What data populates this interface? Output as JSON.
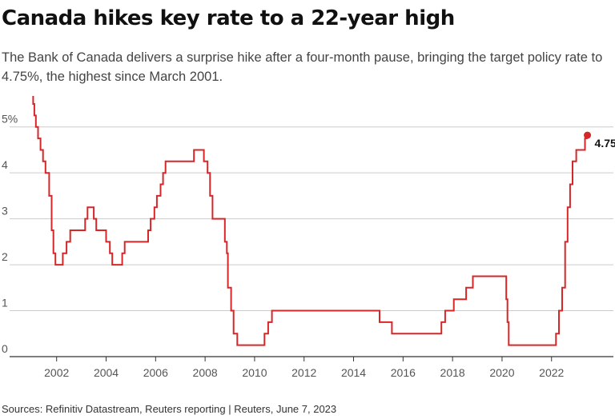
{
  "header": {
    "title": "Canada hikes key rate to a 22-year high",
    "subtitle": "The Bank of Canada delivers a surprise hike after a four-month pause, bringing the target policy rate to 4.75%, the highest since March 2001."
  },
  "footer": {
    "source": "Sources: Refinitiv Datastream, Reuters reporting | Reuters, June 7, 2023"
  },
  "colors": {
    "line": "#d62728",
    "grid": "#cccccc",
    "axis": "#333333"
  },
  "chart_data": {
    "type": "line",
    "series": [
      {
        "name": "Target policy rate",
        "step": true,
        "points": [
          [
            2001.0,
            5.75
          ],
          [
            2001.05,
            5.5
          ],
          [
            2001.1,
            5.25
          ],
          [
            2001.16,
            5.0
          ],
          [
            2001.25,
            4.75
          ],
          [
            2001.35,
            4.5
          ],
          [
            2001.45,
            4.25
          ],
          [
            2001.55,
            4.0
          ],
          [
            2001.7,
            3.5
          ],
          [
            2001.8,
            2.75
          ],
          [
            2001.87,
            2.25
          ],
          [
            2001.95,
            2.0
          ],
          [
            2002.25,
            2.25
          ],
          [
            2002.4,
            2.5
          ],
          [
            2002.55,
            2.75
          ],
          [
            2003.15,
            3.0
          ],
          [
            2003.25,
            3.25
          ],
          [
            2003.5,
            3.0
          ],
          [
            2003.6,
            2.75
          ],
          [
            2004.0,
            2.5
          ],
          [
            2004.15,
            2.25
          ],
          [
            2004.25,
            2.0
          ],
          [
            2004.65,
            2.25
          ],
          [
            2004.75,
            2.5
          ],
          [
            2005.7,
            2.75
          ],
          [
            2005.8,
            3.0
          ],
          [
            2005.95,
            3.25
          ],
          [
            2006.05,
            3.5
          ],
          [
            2006.2,
            3.75
          ],
          [
            2006.3,
            4.0
          ],
          [
            2006.4,
            4.25
          ],
          [
            2007.55,
            4.5
          ],
          [
            2007.95,
            4.25
          ],
          [
            2008.1,
            4.0
          ],
          [
            2008.2,
            3.5
          ],
          [
            2008.3,
            3.0
          ],
          [
            2008.8,
            2.5
          ],
          [
            2008.88,
            2.25
          ],
          [
            2008.92,
            1.5
          ],
          [
            2009.05,
            1.0
          ],
          [
            2009.15,
            0.5
          ],
          [
            2009.3,
            0.25
          ],
          [
            2010.4,
            0.5
          ],
          [
            2010.55,
            0.75
          ],
          [
            2010.7,
            1.0
          ],
          [
            2015.05,
            0.75
          ],
          [
            2015.55,
            0.5
          ],
          [
            2017.55,
            0.75
          ],
          [
            2017.7,
            1.0
          ],
          [
            2018.05,
            1.25
          ],
          [
            2018.55,
            1.5
          ],
          [
            2018.82,
            1.75
          ],
          [
            2020.17,
            1.25
          ],
          [
            2020.22,
            0.75
          ],
          [
            2020.27,
            0.25
          ],
          [
            2022.18,
            0.5
          ],
          [
            2022.3,
            1.0
          ],
          [
            2022.43,
            1.5
          ],
          [
            2022.55,
            2.5
          ],
          [
            2022.65,
            3.25
          ],
          [
            2022.75,
            3.75
          ],
          [
            2022.85,
            4.25
          ],
          [
            2023.0,
            4.5
          ],
          [
            2023.35,
            4.75
          ],
          [
            2023.45,
            4.75
          ]
        ]
      }
    ],
    "annotation": {
      "label": "4.75%",
      "x": 2023.45,
      "y": 4.75
    },
    "x_ticks": [
      {
        "v": 2002,
        "label": "2002"
      },
      {
        "v": 2004,
        "label": "2004"
      },
      {
        "v": 2006,
        "label": "2006"
      },
      {
        "v": 2008,
        "label": "2008"
      },
      {
        "v": 2010,
        "label": "2010"
      },
      {
        "v": 2012,
        "label": "2012"
      },
      {
        "v": 2014,
        "label": "2014"
      },
      {
        "v": 2016,
        "label": "2016"
      },
      {
        "v": 2018,
        "label": "2018"
      },
      {
        "v": 2020,
        "label": "2020"
      },
      {
        "v": 2022,
        "label": "2022"
      }
    ],
    "y_ticks": [
      {
        "v": 0,
        "label": "0"
      },
      {
        "v": 1,
        "label": "1"
      },
      {
        "v": 2,
        "label": "2"
      },
      {
        "v": 3,
        "label": "3"
      },
      {
        "v": 4,
        "label": "4"
      },
      {
        "v": 5,
        "label": "5%"
      }
    ],
    "xlim": [
      2000.1,
      2024.5
    ],
    "ylim": [
      0,
      5.5
    ],
    "grid": true
  }
}
